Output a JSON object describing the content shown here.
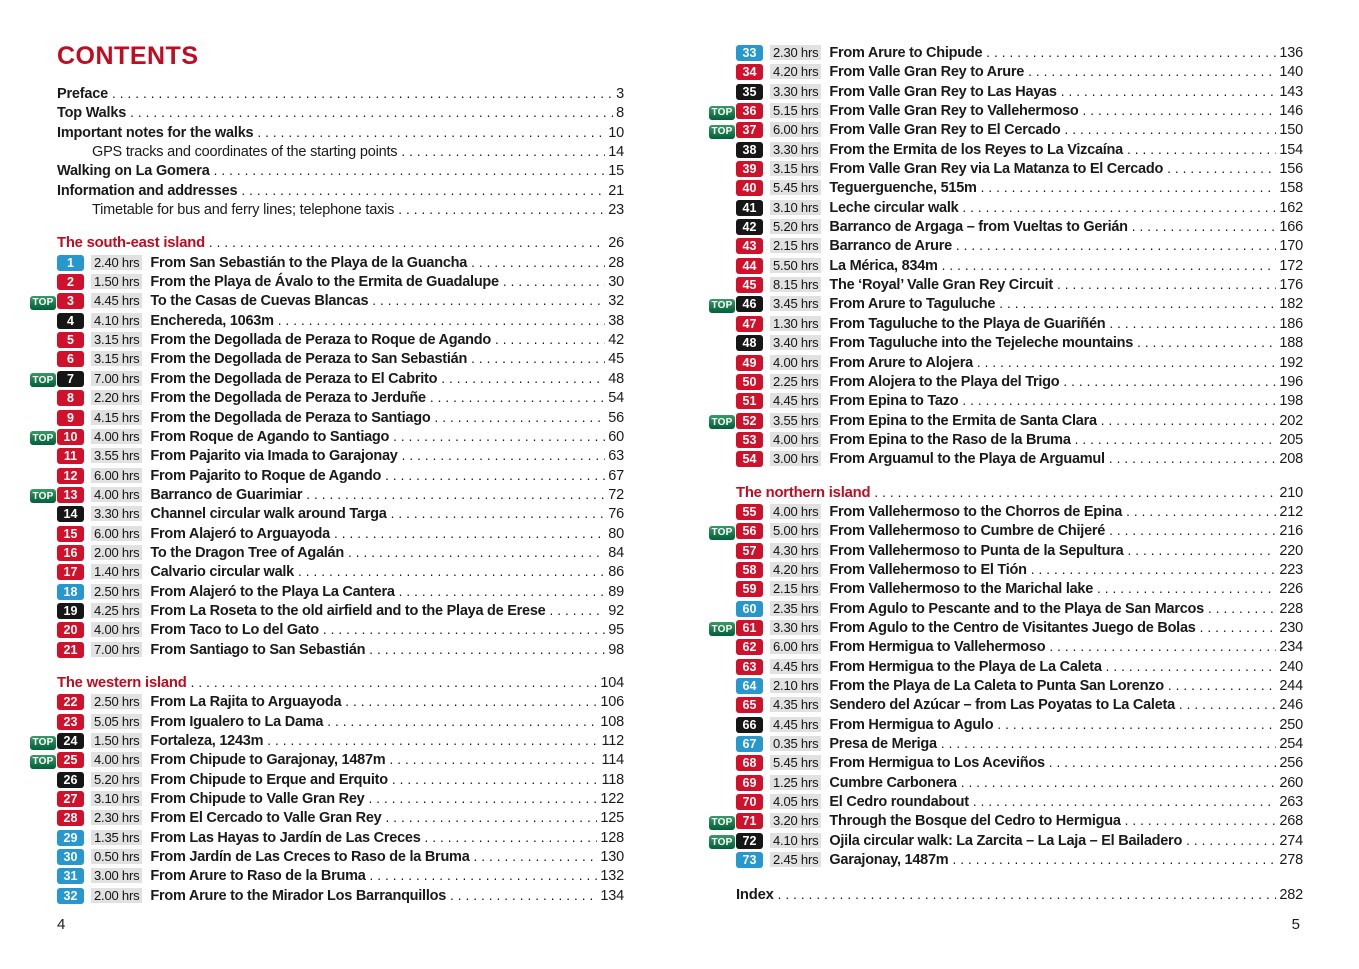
{
  "colors": {
    "heading_red": "#bf0c21",
    "badge_red": "#d0112b",
    "badge_blue": "#2797cd",
    "badge_black": "#161616",
    "top_green_light": "#3a9a66",
    "top_green_dark": "#006039",
    "duration_bg": "#e1e1e1"
  },
  "labels": {
    "top_badge": "TOP"
  },
  "left": {
    "title": "CONTENTS",
    "folio": "4",
    "rows": [
      {
        "t": "front",
        "bold": true,
        "indent": false,
        "label": "Preface",
        "page": "3"
      },
      {
        "t": "front",
        "bold": true,
        "indent": false,
        "label": "Top Walks",
        "page": "8"
      },
      {
        "t": "front",
        "bold": true,
        "indent": false,
        "label": "Important notes for the walks",
        "page": "10"
      },
      {
        "t": "front",
        "bold": false,
        "indent": true,
        "label": "GPS tracks and coordinates of the starting points",
        "page": "14"
      },
      {
        "t": "front",
        "bold": true,
        "indent": false,
        "label": "Walking on La Gomera",
        "page": "15"
      },
      {
        "t": "front",
        "bold": true,
        "indent": false,
        "label": "Information and addresses",
        "page": "21"
      },
      {
        "t": "front",
        "bold": false,
        "indent": true,
        "label": "Timetable for bus and ferry lines; telephone taxis",
        "page": "23"
      },
      {
        "t": "heading",
        "label": "The south-east island",
        "page": "26"
      },
      {
        "t": "walk",
        "top": false,
        "num": "1",
        "color": "blue",
        "dur": "2.40 hrs",
        "title": "From San Sebastián to the Playa de la Guancha",
        "page": "28"
      },
      {
        "t": "walk",
        "top": false,
        "num": "2",
        "color": "red",
        "dur": "1.50 hrs",
        "title": "From the Playa de Ávalo to the Ermita de Guadalupe",
        "page": "30"
      },
      {
        "t": "walk",
        "top": true,
        "num": "3",
        "color": "red",
        "dur": "4.45 hrs",
        "title": "To the Casas de Cuevas Blancas",
        "page": "32"
      },
      {
        "t": "walk",
        "top": false,
        "num": "4",
        "color": "black",
        "dur": "4.10 hrs",
        "title": "Enchereda, 1063m",
        "page": "38"
      },
      {
        "t": "walk",
        "top": false,
        "num": "5",
        "color": "red",
        "dur": "3.15 hrs",
        "title": "From the Degollada de Peraza to Roque de Agando",
        "page": "42"
      },
      {
        "t": "walk",
        "top": false,
        "num": "6",
        "color": "red",
        "dur": "3.15 hrs",
        "title": "From the Degollada de Peraza to San Sebastián",
        "page": "45"
      },
      {
        "t": "walk",
        "top": true,
        "num": "7",
        "color": "black",
        "dur": "7.00 hrs",
        "title": "From the Degollada de Peraza to El Cabrito",
        "page": "48"
      },
      {
        "t": "walk",
        "top": false,
        "num": "8",
        "color": "red",
        "dur": "2.20 hrs",
        "title": "From the Degollada de Peraza to Jerduñe",
        "page": "54"
      },
      {
        "t": "walk",
        "top": false,
        "num": "9",
        "color": "red",
        "dur": "4.15 hrs",
        "title": "From the Degollada de Peraza to Santiago",
        "page": "56"
      },
      {
        "t": "walk",
        "top": true,
        "num": "10",
        "color": "red",
        "dur": "4.00 hrs",
        "title": "From Roque de Agando to Santiago",
        "page": "60"
      },
      {
        "t": "walk",
        "top": false,
        "num": "11",
        "color": "red",
        "dur": "3.55 hrs",
        "title": "From Pajarito via Imada to Garajonay",
        "page": "63"
      },
      {
        "t": "walk",
        "top": false,
        "num": "12",
        "color": "red",
        "dur": "6.00 hrs",
        "title": "From Pajarito to Roque de Agando",
        "page": "67"
      },
      {
        "t": "walk",
        "top": true,
        "num": "13",
        "color": "red",
        "dur": "4.00 hrs",
        "title": "Barranco de Guarimiar",
        "page": "72"
      },
      {
        "t": "walk",
        "top": false,
        "num": "14",
        "color": "black",
        "dur": "3.30 hrs",
        "title": "Channel circular walk around Targa",
        "page": "76"
      },
      {
        "t": "walk",
        "top": false,
        "num": "15",
        "color": "red",
        "dur": "6.00 hrs",
        "title": "From Alajeró to Arguayoda",
        "page": "80"
      },
      {
        "t": "walk",
        "top": false,
        "num": "16",
        "color": "red",
        "dur": "2.00 hrs",
        "title": "To the Dragon Tree of Agalán",
        "page": "84"
      },
      {
        "t": "walk",
        "top": false,
        "num": "17",
        "color": "red",
        "dur": "1.40 hrs",
        "title": "Calvario circular walk",
        "page": "86"
      },
      {
        "t": "walk",
        "top": false,
        "num": "18",
        "color": "blue",
        "dur": "2.50 hrs",
        "title": "From Alajeró to the Playa La Cantera",
        "page": "89"
      },
      {
        "t": "walk",
        "top": false,
        "num": "19",
        "color": "black",
        "dur": "4.25 hrs",
        "title": "From La Roseta to the old airfield and to the Playa de Erese",
        "page": "92"
      },
      {
        "t": "walk",
        "top": false,
        "num": "20",
        "color": "red",
        "dur": "4.00 hrs",
        "title": "From Taco to Lo del Gato",
        "page": "95"
      },
      {
        "t": "walk",
        "top": false,
        "num": "21",
        "color": "red",
        "dur": "7.00 hrs",
        "title": "From Santiago to San Sebastián",
        "page": "98"
      },
      {
        "t": "heading",
        "label": "The western island",
        "page": "104"
      },
      {
        "t": "walk",
        "top": false,
        "num": "22",
        "color": "red",
        "dur": "2.50 hrs",
        "title": "From La Rajita to Arguayoda",
        "page": "106"
      },
      {
        "t": "walk",
        "top": false,
        "num": "23",
        "color": "red",
        "dur": "5.05 hrs",
        "title": "From Igualero to La Dama",
        "page": "108"
      },
      {
        "t": "walk",
        "top": true,
        "num": "24",
        "color": "black",
        "dur": "1.50 hrs",
        "title": "Fortaleza, 1243m",
        "page": "112"
      },
      {
        "t": "walk",
        "top": true,
        "num": "25",
        "color": "red",
        "dur": "4.00 hrs",
        "title": "From Chipude to Garajonay, 1487m",
        "page": "114"
      },
      {
        "t": "walk",
        "top": false,
        "num": "26",
        "color": "black",
        "dur": "5.20 hrs",
        "title": "From Chipude to Erque and Erquito",
        "page": "118"
      },
      {
        "t": "walk",
        "top": false,
        "num": "27",
        "color": "red",
        "dur": "3.10 hrs",
        "title": "From Chipude to Valle Gran Rey",
        "page": "122"
      },
      {
        "t": "walk",
        "top": false,
        "num": "28",
        "color": "red",
        "dur": "2.30 hrs",
        "title": "From El Cercado to Valle Gran Rey",
        "page": "125"
      },
      {
        "t": "walk",
        "top": false,
        "num": "29",
        "color": "blue",
        "dur": "1.35 hrs",
        "title": "From Las Hayas to Jardín de Las Creces",
        "page": "128"
      },
      {
        "t": "walk",
        "top": false,
        "num": "30",
        "color": "blue",
        "dur": "0.50 hrs",
        "title": "From Jardín de Las Creces to Raso de la Bruma",
        "page": "130"
      },
      {
        "t": "walk",
        "top": false,
        "num": "31",
        "color": "blue",
        "dur": "3.00 hrs",
        "title": "From Arure to Raso de la Bruma",
        "page": "132"
      },
      {
        "t": "walk",
        "top": false,
        "num": "32",
        "color": "blue",
        "dur": "2.00 hrs",
        "title": "From Arure to the Mirador Los Barranquillos",
        "page": "134"
      }
    ]
  },
  "right": {
    "folio": "5",
    "rows": [
      {
        "t": "walk",
        "top": false,
        "num": "33",
        "color": "blue",
        "dur": "2.30 hrs",
        "title": "From Arure to Chipude",
        "page": "136"
      },
      {
        "t": "walk",
        "top": false,
        "num": "34",
        "color": "red",
        "dur": "4.20 hrs",
        "title": "From Valle Gran Rey to Arure",
        "page": "140"
      },
      {
        "t": "walk",
        "top": false,
        "num": "35",
        "color": "black",
        "dur": "3.30 hrs",
        "title": "From Valle Gran Rey to Las Hayas",
        "page": "143"
      },
      {
        "t": "walk",
        "top": true,
        "num": "36",
        "color": "red",
        "dur": "5.15 hrs",
        "title": "From Valle Gran Rey to Vallehermoso",
        "page": "146"
      },
      {
        "t": "walk",
        "top": true,
        "num": "37",
        "color": "red",
        "dur": "6.00 hrs",
        "title": "From Valle Gran Rey to El Cercado",
        "page": "150"
      },
      {
        "t": "walk",
        "top": false,
        "num": "38",
        "color": "black",
        "dur": "3.30 hrs",
        "title": "From the Ermita de los Reyes to La Vizcaína",
        "page": "154"
      },
      {
        "t": "walk",
        "top": false,
        "num": "39",
        "color": "red",
        "dur": "3.15 hrs",
        "title": "From Valle Gran Rey via La Matanza to El Cercado",
        "page": "156"
      },
      {
        "t": "walk",
        "top": false,
        "num": "40",
        "color": "red",
        "dur": "5.45 hrs",
        "title": "Teguerguenche, 515m",
        "page": "158"
      },
      {
        "t": "walk",
        "top": false,
        "num": "41",
        "color": "black",
        "dur": "3.10 hrs",
        "title": "Leche circular walk",
        "page": "162"
      },
      {
        "t": "walk",
        "top": false,
        "num": "42",
        "color": "black",
        "dur": "5.20 hrs",
        "title": "Barranco de Argaga – from Vueltas to Gerián",
        "page": "166"
      },
      {
        "t": "walk",
        "top": false,
        "num": "43",
        "color": "red",
        "dur": "2.15 hrs",
        "title": "Barranco de Arure",
        "page": "170"
      },
      {
        "t": "walk",
        "top": false,
        "num": "44",
        "color": "red",
        "dur": "5.50 hrs",
        "title": "La Mérica, 834m",
        "page": "172"
      },
      {
        "t": "walk",
        "top": false,
        "num": "45",
        "color": "red",
        "dur": "8.15 hrs",
        "title": "The ‘Royal’ Valle Gran Rey Circuit",
        "page": "176"
      },
      {
        "t": "walk",
        "top": true,
        "num": "46",
        "color": "black",
        "dur": "3.45 hrs",
        "title": "From Arure to Taguluche",
        "page": "182"
      },
      {
        "t": "walk",
        "top": false,
        "num": "47",
        "color": "red",
        "dur": "1.30 hrs",
        "title": "From Taguluche to the Playa de Guariñén",
        "page": "186"
      },
      {
        "t": "walk",
        "top": false,
        "num": "48",
        "color": "black",
        "dur": "3.40 hrs",
        "title": "From Taguluche into the Tejeleche mountains",
        "page": "188"
      },
      {
        "t": "walk",
        "top": false,
        "num": "49",
        "color": "red",
        "dur": "4.00 hrs",
        "title": "From Arure to Alojera",
        "page": "192"
      },
      {
        "t": "walk",
        "top": false,
        "num": "50",
        "color": "red",
        "dur": "2.25 hrs",
        "title": "From Alojera to the Playa del Trigo",
        "page": "196"
      },
      {
        "t": "walk",
        "top": false,
        "num": "51",
        "color": "red",
        "dur": "4.45 hrs",
        "title": "From Epina to Tazo",
        "page": "198"
      },
      {
        "t": "walk",
        "top": true,
        "num": "52",
        "color": "red",
        "dur": "3.55 hrs",
        "title": "From Epina to the Ermita de Santa Clara",
        "page": "202"
      },
      {
        "t": "walk",
        "top": false,
        "num": "53",
        "color": "red",
        "dur": "4.00 hrs",
        "title": "From Epina to the Raso de la Bruma",
        "page": "205"
      },
      {
        "t": "walk",
        "top": false,
        "num": "54",
        "color": "red",
        "dur": "3.00 hrs",
        "title": "From Arguamul to the Playa de Arguamul",
        "page": "208"
      },
      {
        "t": "heading",
        "label": "The northern island",
        "page": "210"
      },
      {
        "t": "walk",
        "top": false,
        "num": "55",
        "color": "red",
        "dur": "4.00 hrs",
        "title": "From Vallehermoso to the Chorros de Epina",
        "page": "212"
      },
      {
        "t": "walk",
        "top": true,
        "num": "56",
        "color": "red",
        "dur": "5.00 hrs",
        "title": "From Vallehermoso to Cumbre de Chijeré",
        "page": "216"
      },
      {
        "t": "walk",
        "top": false,
        "num": "57",
        "color": "red",
        "dur": "4.30 hrs",
        "title": "From Vallehermoso to Punta de la Sepultura",
        "page": "220"
      },
      {
        "t": "walk",
        "top": false,
        "num": "58",
        "color": "red",
        "dur": "4.20 hrs",
        "title": "From Vallehermoso to El Tión",
        "page": "223"
      },
      {
        "t": "walk",
        "top": false,
        "num": "59",
        "color": "red",
        "dur": "2.15 hrs",
        "title": "From Vallehermoso to the Marichal lake",
        "page": "226"
      },
      {
        "t": "walk",
        "top": false,
        "num": "60",
        "color": "blue",
        "dur": "2.35 hrs",
        "title": "From Agulo to Pescante and to the Playa de San Marcos",
        "page": "228"
      },
      {
        "t": "walk",
        "top": true,
        "num": "61",
        "color": "red",
        "dur": "3.30 hrs",
        "title": "From Agulo to the Centro de Visitantes Juego de Bolas",
        "page": "230"
      },
      {
        "t": "walk",
        "top": false,
        "num": "62",
        "color": "red",
        "dur": "6.00 hrs",
        "title": "From Hermigua to Vallehermoso",
        "page": "234"
      },
      {
        "t": "walk",
        "top": false,
        "num": "63",
        "color": "red",
        "dur": "4.45 hrs",
        "title": "From Hermigua to the Playa de La Caleta",
        "page": "240"
      },
      {
        "t": "walk",
        "top": false,
        "num": "64",
        "color": "blue",
        "dur": "2.10 hrs",
        "title": "From the Playa de La Caleta to Punta San Lorenzo",
        "page": "244"
      },
      {
        "t": "walk",
        "top": false,
        "num": "65",
        "color": "red",
        "dur": "4.35 hrs",
        "title": "Sendero del Azúcar – from Las Poyatas to La Caleta",
        "page": "246"
      },
      {
        "t": "walk",
        "top": false,
        "num": "66",
        "color": "black",
        "dur": "4.45 hrs",
        "title": "From Hermigua to Agulo",
        "page": "250"
      },
      {
        "t": "walk",
        "top": false,
        "num": "67",
        "color": "blue",
        "dur": "0.35 hrs",
        "title": "Presa de Meriga",
        "page": "254"
      },
      {
        "t": "walk",
        "top": false,
        "num": "68",
        "color": "red",
        "dur": "5.45 hrs",
        "title": "From Hermigua to Los Aceviños",
        "page": "256"
      },
      {
        "t": "walk",
        "top": false,
        "num": "69",
        "color": "red",
        "dur": "1.25 hrs",
        "title": "Cumbre Carbonera",
        "page": "260"
      },
      {
        "t": "walk",
        "top": false,
        "num": "70",
        "color": "red",
        "dur": "4.05 hrs",
        "title": "El Cedro roundabout",
        "page": "263"
      },
      {
        "t": "walk",
        "top": true,
        "num": "71",
        "color": "red",
        "dur": "3.20 hrs",
        "title": "Through the Bosque del Cedro to Hermigua",
        "page": "268"
      },
      {
        "t": "walk",
        "top": true,
        "num": "72",
        "color": "black",
        "dur": "4.10 hrs",
        "title": "Ojila circular walk: La Zarcita – La Laja – El Bailadero",
        "page": "274"
      },
      {
        "t": "walk",
        "top": false,
        "num": "73",
        "color": "blue",
        "dur": "2.45 hrs",
        "title": "Garajonay, 1487m",
        "page": "278"
      },
      {
        "t": "index",
        "label": "Index",
        "page": "282"
      }
    ]
  }
}
